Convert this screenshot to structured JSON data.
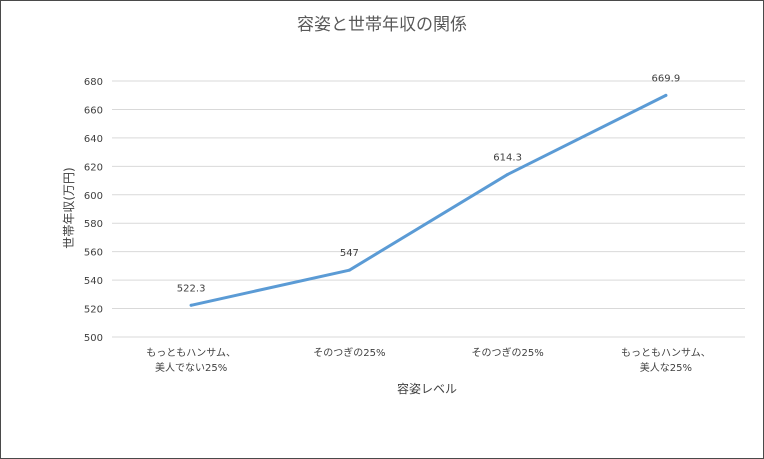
{
  "chart_data": {
    "type": "line",
    "title": "容姿と世帯年収の関係",
    "xlabel": "容姿レベル",
    "ylabel": "世帯年収(万円)",
    "categories": [
      [
        "もっともハンサム、",
        "美人でない25%"
      ],
      [
        "そのつぎの25%"
      ],
      [
        "そのつぎの25%"
      ],
      [
        "もっともハンサム、",
        "美人な25%"
      ]
    ],
    "series": [
      {
        "values": [
          522.3,
          547,
          614.3,
          669.9
        ],
        "labels": [
          "522.3",
          "547",
          "614.3",
          "669.9"
        ]
      }
    ],
    "ylim": [
      500,
      680
    ],
    "yticks": [
      500,
      520,
      540,
      560,
      580,
      600,
      620,
      640,
      660,
      680
    ],
    "grid": true,
    "legend": "none",
    "line_color": "#5b9bd5",
    "grid_color": "#d9d9d9"
  }
}
